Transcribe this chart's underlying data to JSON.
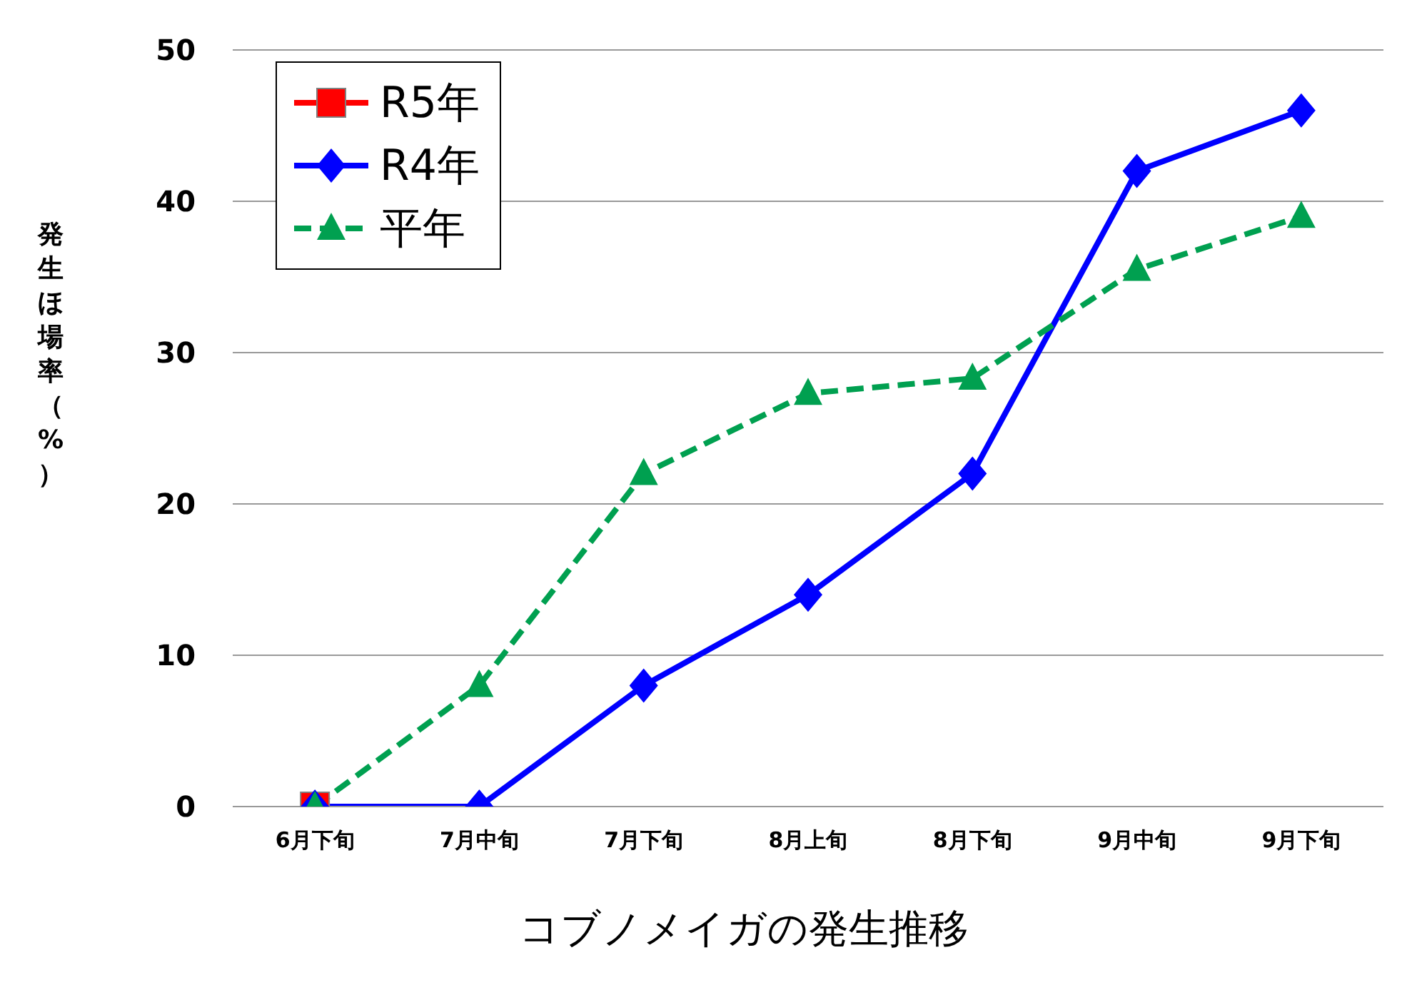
{
  "chart_data": {
    "type": "line",
    "xlabel": "コブノメイガの発生推移",
    "ylabel": "発生ほ場率（%）",
    "categories": [
      "6月下旬",
      "7月中旬",
      "7月下旬",
      "8月上旬",
      "8月下旬",
      "9月中旬",
      "9月下旬"
    ],
    "series": [
      {
        "name": "R5年",
        "color": "#ff0000",
        "marker": "square",
        "line_style": "solid",
        "values": [
          0,
          null,
          null,
          null,
          null,
          null,
          null
        ]
      },
      {
        "name": "R4年",
        "color": "#0000ff",
        "marker": "diamond",
        "line_style": "solid",
        "values": [
          0,
          0,
          8,
          14,
          22,
          42,
          46
        ]
      },
      {
        "name": "平年",
        "color": "#00a050",
        "marker": "triangle",
        "line_style": "dashed",
        "values": [
          0,
          8,
          22,
          27.3,
          28.3,
          35.5,
          39
        ]
      }
    ],
    "ylim": [
      0,
      50
    ],
    "yticks": [
      0,
      10,
      20,
      30,
      40,
      50
    ],
    "grid": "y",
    "legend": "top left"
  }
}
